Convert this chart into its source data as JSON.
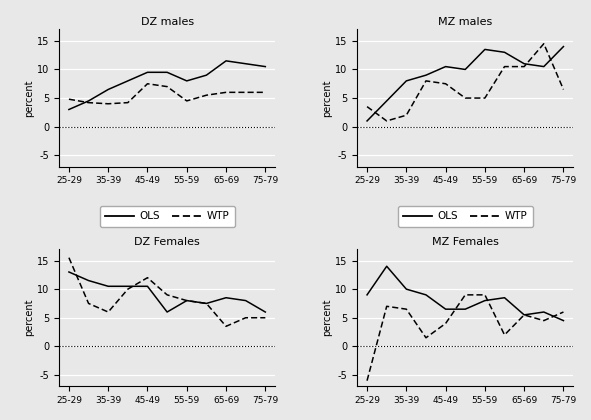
{
  "x_labels": [
    "25-29",
    "35-39",
    "45-49",
    "55-59",
    "65-69",
    "75-79"
  ],
  "panels": [
    {
      "title": "DZ males",
      "ols_x": [
        0,
        1,
        2,
        3,
        4,
        5,
        6,
        7,
        8,
        9,
        10
      ],
      "ols_y": [
        3.0,
        4.5,
        6.5,
        8.0,
        9.5,
        9.5,
        8.0,
        9.0,
        11.5,
        11.0,
        10.5
      ],
      "wtp_x": [
        0,
        1,
        2,
        3,
        4,
        5,
        6,
        7,
        8,
        9,
        10
      ],
      "wtp_y": [
        4.8,
        4.2,
        4.0,
        4.2,
        7.5,
        7.0,
        4.5,
        5.5,
        6.0,
        6.0,
        6.0
      ]
    },
    {
      "title": "MZ males",
      "ols_x": [
        0,
        1,
        2,
        3,
        4,
        5,
        6,
        7,
        8,
        9,
        10
      ],
      "ols_y": [
        1.0,
        4.5,
        8.0,
        9.0,
        10.5,
        10.0,
        13.5,
        13.0,
        11.0,
        10.5,
        14.0
      ],
      "wtp_x": [
        0,
        1,
        2,
        3,
        4,
        5,
        6,
        7,
        8,
        9,
        10
      ],
      "wtp_y": [
        3.5,
        1.0,
        2.0,
        8.0,
        7.5,
        5.0,
        5.0,
        10.5,
        10.5,
        14.5,
        6.5
      ]
    },
    {
      "title": "DZ Females",
      "ols_x": [
        0,
        1,
        2,
        3,
        4,
        5,
        6,
        7,
        8,
        9,
        10
      ],
      "ols_y": [
        13.0,
        11.5,
        10.5,
        10.5,
        10.5,
        6.0,
        8.0,
        7.5,
        8.5,
        8.0,
        6.0
      ],
      "wtp_x": [
        0,
        1,
        2,
        3,
        4,
        5,
        6,
        7,
        8,
        9,
        10
      ],
      "wtp_y": [
        15.5,
        7.5,
        6.0,
        10.0,
        12.0,
        9.0,
        8.0,
        7.5,
        3.5,
        5.0,
        5.0
      ]
    },
    {
      "title": "MZ Females",
      "ols_x": [
        0,
        1,
        2,
        3,
        4,
        5,
        6,
        7,
        8,
        9,
        10
      ],
      "ols_y": [
        9.0,
        14.0,
        10.0,
        9.0,
        6.5,
        6.5,
        8.0,
        8.5,
        5.5,
        6.0,
        4.5
      ],
      "wtp_x": [
        0,
        1,
        2,
        3,
        4,
        5,
        6,
        7,
        8,
        9,
        10
      ],
      "wtp_y": [
        -6.0,
        7.0,
        6.5,
        1.5,
        4.0,
        9.0,
        9.0,
        2.0,
        5.5,
        4.5,
        6.0
      ]
    }
  ],
  "ylim": [
    -7,
    17
  ],
  "yticks": [
    -5,
    0,
    5,
    10,
    15
  ],
  "xtick_positions": [
    0,
    2,
    4,
    6,
    8,
    10
  ],
  "background_color": "#e8e8e8",
  "plot_bg": "#e8e8e8"
}
